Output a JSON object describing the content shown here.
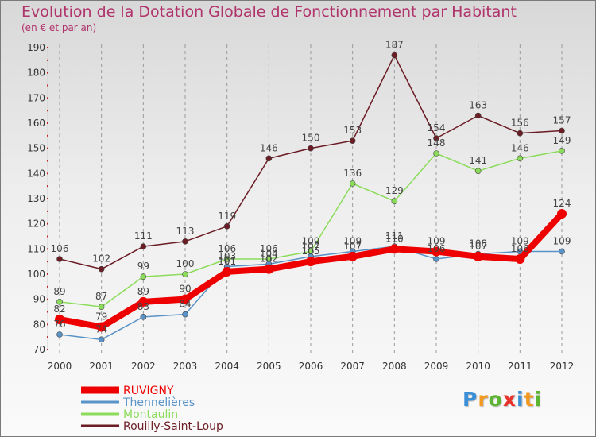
{
  "title": "Evolution de la Dotation Globale de Fonctionnement par Habitant",
  "subtitle": "(en € et par an)",
  "logo": {
    "text": "Proxiti",
    "colors": [
      "#3a8fd6",
      "#f29a1f",
      "#5bb531",
      "#e7332c"
    ]
  },
  "chart_data": {
    "type": "line",
    "title": "Evolution de la Dotation Globale de Fonctionnement par Habitant",
    "subtitle": "(en € et par an)",
    "xlabel": "",
    "ylabel": "",
    "x": [
      "2000",
      "2001",
      "2002",
      "2003",
      "2004",
      "2005",
      "2006",
      "2007",
      "2008",
      "2009",
      "2010",
      "2011",
      "2012"
    ],
    "ylim": [
      70,
      190
    ],
    "yticks": [
      70,
      80,
      90,
      100,
      110,
      120,
      130,
      140,
      150,
      160,
      170,
      180,
      190
    ],
    "grid": "vertical dashed",
    "legend_position": "bottom-left",
    "series": [
      {
        "name": "Rouilly-Saint-Loup",
        "color": "#6b1c24",
        "values": [
          106,
          102,
          111,
          113,
          119,
          146,
          150,
          153,
          187,
          154,
          163,
          156,
          157
        ]
      },
      {
        "name": "Montaulin",
        "color": "#8bdc5a",
        "values": [
          89,
          87,
          99,
          100,
          106,
          106,
          109,
          136,
          129,
          148,
          141,
          146,
          149
        ]
      },
      {
        "name": "Thennelières",
        "color": "#5a93c7",
        "values": [
          76,
          74,
          83,
          84,
          103,
          104,
          107,
          109,
          111,
          106,
          108,
          109,
          109
        ]
      },
      {
        "name": "RUVIGNY",
        "color": "#ee0000",
        "values": [
          82,
          79,
          89,
          90,
          101,
          102,
          105,
          107,
          110,
          109,
          107,
          106,
          124
        ]
      }
    ]
  }
}
